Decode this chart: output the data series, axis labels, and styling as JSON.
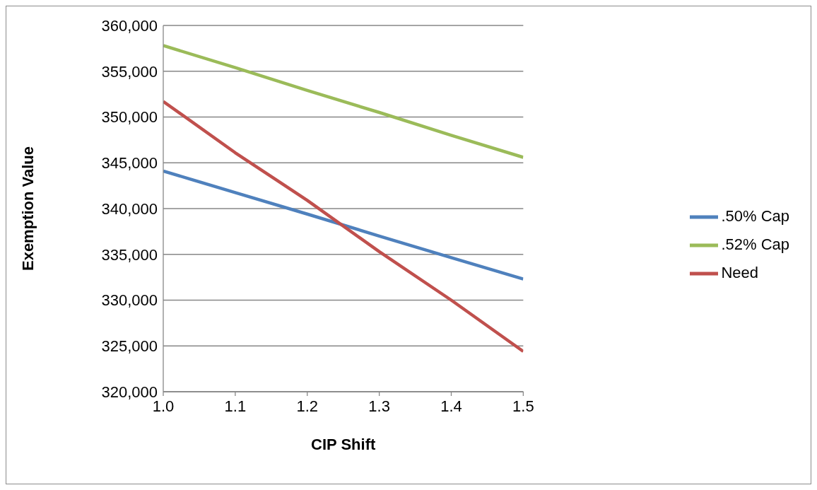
{
  "chart_data": {
    "type": "line",
    "xlabel": "CIP Shift",
    "ylabel": "Exemption Value",
    "x": [
      1.0,
      1.1,
      1.2,
      1.3,
      1.4,
      1.5
    ],
    "series": [
      {
        "name": ".50% Cap",
        "color": "#4f81bd",
        "values": [
          344100,
          341750,
          339400,
          337000,
          334650,
          332300
        ]
      },
      {
        "name": "Need",
        "color": "#c0504d",
        "values": [
          351700,
          346100,
          340900,
          335300,
          330000,
          324400
        ]
      },
      {
        "name": ".52% Cap",
        "color": "#9bbb59",
        "values": [
          357800,
          355400,
          352900,
          350500,
          348000,
          345600
        ]
      }
    ],
    "xlim": [
      1.0,
      1.5
    ],
    "xticks": [
      {
        "value": 1.0,
        "label": "1.0"
      },
      {
        "value": 1.1,
        "label": "1.1"
      },
      {
        "value": 1.2,
        "label": "1.2"
      },
      {
        "value": 1.3,
        "label": "1.3"
      },
      {
        "value": 1.4,
        "label": "1.4"
      },
      {
        "value": 1.5,
        "label": "1.5"
      }
    ],
    "ylim": [
      320000,
      360000
    ],
    "yticks": [
      {
        "value": 320000,
        "label": "320,000"
      },
      {
        "value": 325000,
        "label": "325,000"
      },
      {
        "value": 330000,
        "label": "330,000"
      },
      {
        "value": 335000,
        "label": "335,000"
      },
      {
        "value": 340000,
        "label": "340,000"
      },
      {
        "value": 345000,
        "label": "345,000"
      },
      {
        "value": 350000,
        "label": "350,000"
      },
      {
        "value": 355000,
        "label": "355,000"
      },
      {
        "value": 360000,
        "label": "360,000"
      }
    ],
    "grid": "y",
    "legend": "right",
    "marker": "none",
    "line_style": "solid"
  }
}
